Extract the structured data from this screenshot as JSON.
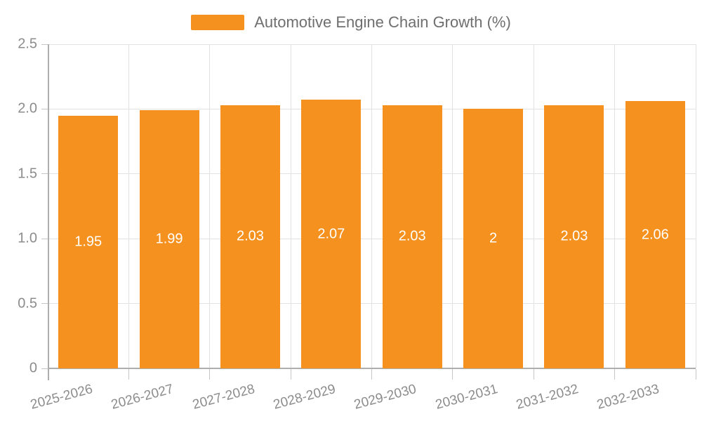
{
  "chart_data": {
    "type": "bar",
    "title": "Automotive Engine Chain Growth (%)",
    "legend": [
      "Automotive Engine Chain Growth (%)"
    ],
    "legend_position": "top-center",
    "categories": [
      "2025-2026",
      "2026-2027",
      "2027-2028",
      "2028-2029",
      "2029-2030",
      "2030-2031",
      "2031-2032",
      "2032-2033"
    ],
    "values": [
      1.95,
      1.99,
      2.03,
      2.07,
      2.03,
      2.0,
      2.03,
      2.06
    ],
    "value_labels": [
      "1.95",
      "1.99",
      "2.03",
      "2.07",
      "2.03",
      "2",
      "2.03",
      "2.06"
    ],
    "value_labels_position": "inside-middle",
    "xlabel": "",
    "ylabel": "",
    "ylim": [
      0,
      2.5
    ],
    "yticks": [
      0,
      0.5,
      1.0,
      1.5,
      2.0,
      2.5
    ],
    "ytick_labels": [
      "0",
      "0.5",
      "1.0",
      "1.5",
      "2.0",
      "2.5"
    ],
    "grid": true,
    "x_label_rotation_deg": 15,
    "colors": {
      "bar": "#f5921f",
      "value_label": "#ffffff",
      "axis_text": "#8c8c8c",
      "legend_text": "#6f6f6f",
      "grid_line": "#e2e2e2",
      "axis_line": "#aeaeae",
      "tick": "#c6c6c6",
      "background": "#ffffff"
    }
  }
}
